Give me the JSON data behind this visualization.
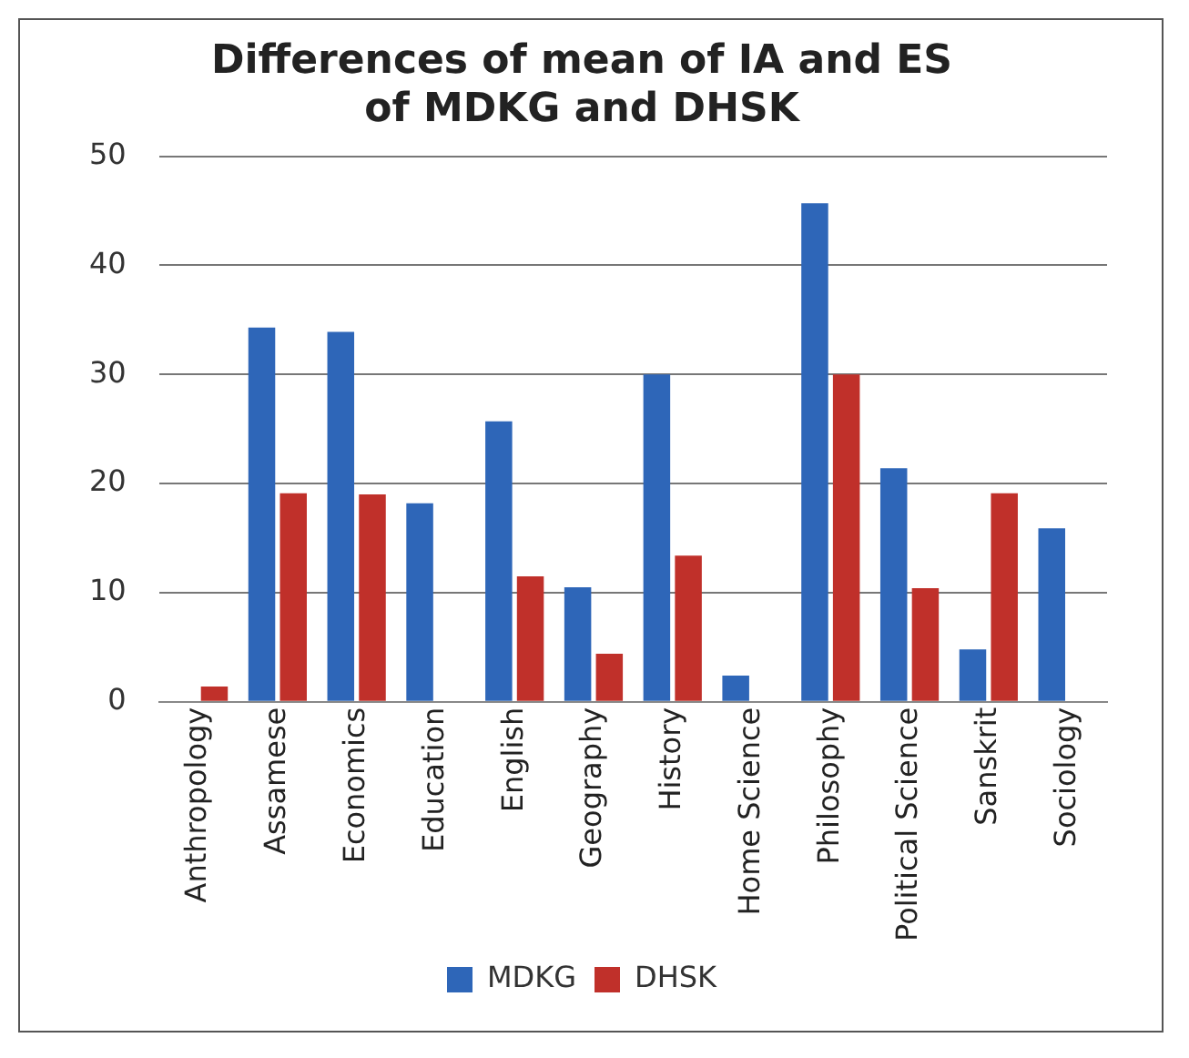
{
  "chart_data": {
    "type": "bar",
    "title": "Differences of mean of IA and ES of MDKG and DHSK",
    "categories": [
      "Anthropology",
      "Assamese",
      "Economics",
      "Education",
      "English",
      "Geography",
      "History",
      "Home Science",
      "Philosophy",
      "Political Science",
      "Sanskrit",
      "Sociology"
    ],
    "series": [
      {
        "name": "MDKG",
        "color": "#2e66b8",
        "values": [
          null,
          34.3,
          33.9,
          18.2,
          25.7,
          10.5,
          30.0,
          2.4,
          45.7,
          21.4,
          4.8,
          15.9
        ]
      },
      {
        "name": "DHSK",
        "color": "#c0302a",
        "values": [
          1.4,
          19.1,
          19.0,
          null,
          11.5,
          4.4,
          13.4,
          null,
          30.0,
          10.4,
          19.1,
          null
        ]
      }
    ],
    "ylim": [
      0,
      50
    ],
    "yticks": [
      0,
      10,
      20,
      30,
      40,
      50
    ],
    "grid": "y",
    "legend": "bottom"
  }
}
